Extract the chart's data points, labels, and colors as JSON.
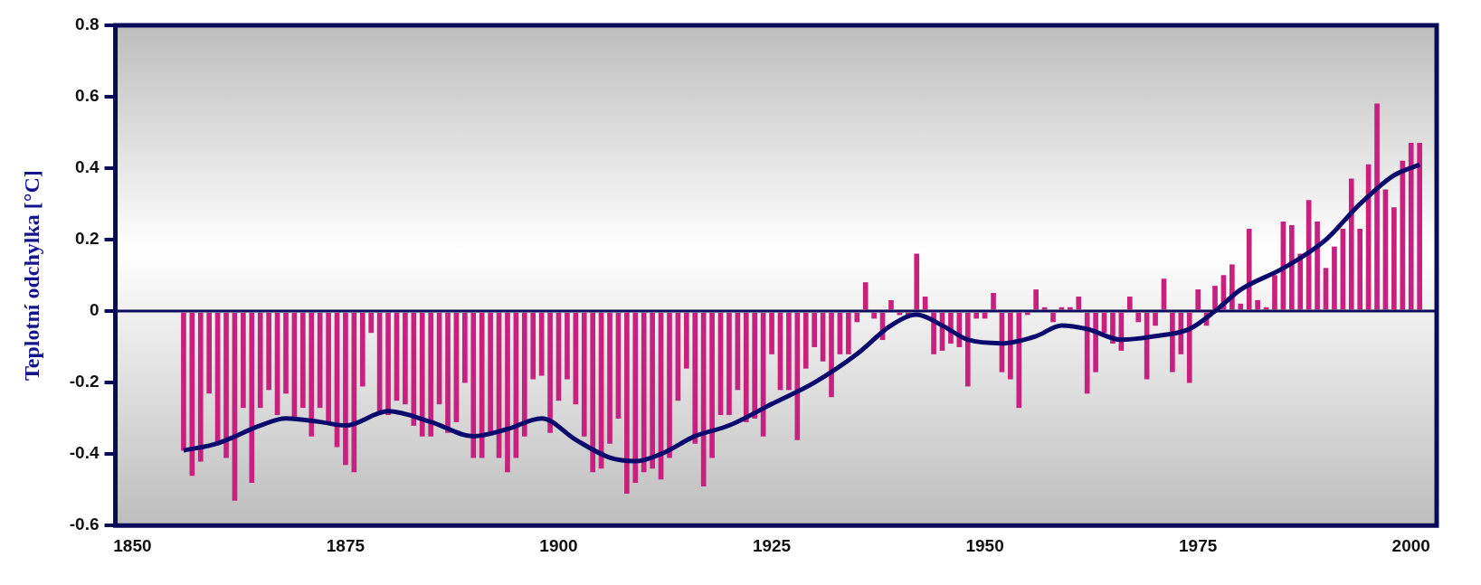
{
  "chart_data": {
    "type": "bar",
    "ylabel": "Teplotní odchylka [°C]",
    "xlim": [
      1848,
      2003
    ],
    "xticks": [
      1850,
      1875,
      1900,
      1925,
      1950,
      1975,
      2000
    ],
    "ylim": [
      -0.6,
      0.8
    ],
    "yticks": [
      -0.6,
      -0.4,
      -0.2,
      0,
      0.2,
      0.4,
      0.6,
      0.8
    ],
    "grid": false,
    "legend": false,
    "ref_lines": [
      {
        "axis": "y",
        "value": 0,
        "color": "#0a0a5a"
      }
    ],
    "x": [
      1856,
      1857,
      1858,
      1859,
      1860,
      1861,
      1862,
      1863,
      1864,
      1865,
      1866,
      1867,
      1868,
      1869,
      1870,
      1871,
      1872,
      1873,
      1874,
      1875,
      1876,
      1877,
      1878,
      1879,
      1880,
      1881,
      1882,
      1883,
      1884,
      1885,
      1886,
      1887,
      1888,
      1889,
      1890,
      1891,
      1892,
      1893,
      1894,
      1895,
      1896,
      1897,
      1898,
      1899,
      1900,
      1901,
      1902,
      1903,
      1904,
      1905,
      1906,
      1907,
      1908,
      1909,
      1910,
      1911,
      1912,
      1913,
      1914,
      1915,
      1916,
      1917,
      1918,
      1919,
      1920,
      1921,
      1922,
      1923,
      1924,
      1925,
      1926,
      1927,
      1928,
      1929,
      1930,
      1931,
      1932,
      1933,
      1934,
      1935,
      1936,
      1937,
      1938,
      1939,
      1940,
      1941,
      1942,
      1943,
      1944,
      1945,
      1946,
      1947,
      1948,
      1949,
      1950,
      1951,
      1952,
      1953,
      1954,
      1955,
      1956,
      1957,
      1958,
      1959,
      1960,
      1961,
      1962,
      1963,
      1964,
      1965,
      1966,
      1967,
      1968,
      1969,
      1970,
      1971,
      1972,
      1973,
      1974,
      1975,
      1976,
      1977,
      1978,
      1979,
      1980,
      1981,
      1982,
      1983,
      1984,
      1985,
      1986,
      1987,
      1988,
      1989,
      1990,
      1991,
      1992,
      1993,
      1994,
      1995,
      1996,
      1997,
      1998,
      1999,
      2000,
      2001
    ],
    "series": [
      {
        "color": "#c8207e",
        "values": [
          -0.39,
          -0.46,
          -0.42,
          -0.23,
          -0.37,
          -0.41,
          -0.53,
          -0.27,
          -0.48,
          -0.27,
          -0.22,
          -0.29,
          -0.23,
          -0.3,
          -0.27,
          -0.35,
          -0.27,
          -0.31,
          -0.38,
          -0.43,
          -0.45,
          -0.21,
          -0.06,
          -0.28,
          -0.29,
          -0.25,
          -0.26,
          -0.32,
          -0.35,
          -0.35,
          -0.26,
          -0.34,
          -0.31,
          -0.2,
          -0.41,
          -0.41,
          -0.34,
          -0.41,
          -0.45,
          -0.41,
          -0.35,
          -0.19,
          -0.18,
          -0.34,
          -0.25,
          -0.19,
          -0.26,
          -0.35,
          -0.45,
          -0.44,
          -0.37,
          -0.3,
          -0.51,
          -0.48,
          -0.45,
          -0.44,
          -0.47,
          -0.41,
          -0.25,
          -0.16,
          -0.37,
          -0.49,
          -0.41,
          -0.29,
          -0.29,
          -0.22,
          -0.31,
          -0.3,
          -0.35,
          -0.12,
          -0.22,
          -0.22,
          -0.36,
          -0.16,
          -0.1,
          -0.14,
          -0.24,
          -0.12,
          -0.12,
          -0.03,
          0.08,
          -0.02,
          -0.08,
          0.03,
          -0.01,
          -0.01,
          0.16,
          0.04,
          -0.12,
          -0.11,
          -0.09,
          -0.1,
          -0.21,
          -0.02,
          -0.02,
          0.05,
          -0.17,
          -0.19,
          -0.27,
          -0.01,
          0.06,
          0.01,
          -0.03,
          0.01,
          0.01,
          0.04,
          -0.23,
          -0.17,
          -0.06,
          -0.09,
          -0.11,
          0.04,
          -0.03,
          -0.19,
          -0.04,
          0.09,
          -0.17,
          -0.12,
          -0.2,
          0.06,
          -0.04,
          0.07,
          0.1,
          0.13,
          0.02,
          0.23,
          0.03,
          0.01,
          0.1,
          0.25,
          0.24,
          0.16,
          0.31,
          0.25,
          0.12,
          0.18,
          0.23,
          0.37,
          0.23,
          0.41,
          0.58,
          0.34,
          0.29,
          0.42,
          0.47,
          0.47
        ]
      },
      {
        "type": "line",
        "color": "#0a0a6e",
        "x": [
          1856,
          1860,
          1865,
          1868,
          1872,
          1875,
          1880,
          1885,
          1890,
          1894,
          1898,
          1902,
          1906,
          1909,
          1912,
          1916,
          1920,
          1925,
          1930,
          1935,
          1939,
          1942,
          1945,
          1948,
          1952,
          1956,
          1959,
          1962,
          1966,
          1970,
          1974,
          1977,
          1980,
          1985,
          1990,
          1994,
          1998,
          2001
        ],
        "values": [
          -0.39,
          -0.37,
          -0.32,
          -0.3,
          -0.31,
          -0.32,
          -0.28,
          -0.31,
          -0.35,
          -0.33,
          -0.3,
          -0.36,
          -0.41,
          -0.42,
          -0.4,
          -0.35,
          -0.32,
          -0.26,
          -0.2,
          -0.12,
          -0.04,
          -0.01,
          -0.04,
          -0.08,
          -0.09,
          -0.07,
          -0.04,
          -0.05,
          -0.08,
          -0.07,
          -0.05,
          0.0,
          0.06,
          0.12,
          0.2,
          0.3,
          0.38,
          0.41
        ]
      }
    ]
  }
}
